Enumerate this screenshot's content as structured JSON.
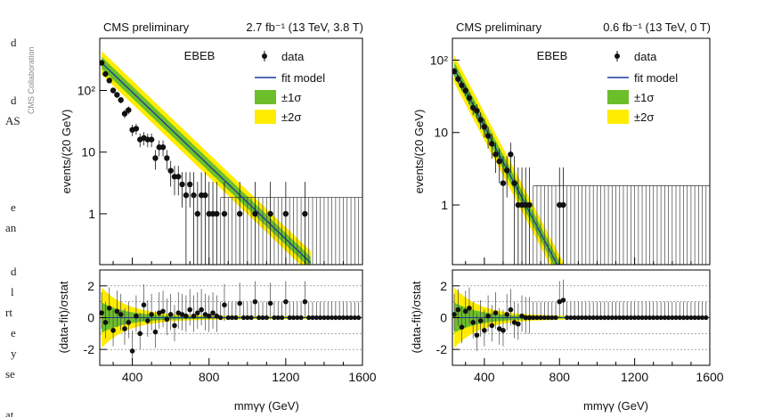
{
  "page": {
    "left_text_fragments": [
      "d",
      "d",
      "AS",
      "e",
      "an",
      "d",
      "l",
      "rt",
      "e",
      "y",
      "se",
      "at"
    ],
    "credit": "CMS Collaboration"
  },
  "colors": {
    "fit": "#1a3a9c",
    "band1": "#6cbf2a",
    "band2": "#ffec00",
    "data": "#111111",
    "frame": "#000000"
  },
  "chart_data": [
    {
      "type": "scatter",
      "panel": "left",
      "header_left": "CMS preliminary",
      "header_right": "2.7 fb⁻¹ (13 TeV, 3.8 T)",
      "category": "EBEB",
      "legend": [
        "data",
        "fit model",
        "±1σ",
        "±2σ"
      ],
      "xlabel": "mmγγ (GeV)",
      "ylabel_top": "events/(20 GeV)",
      "ylabel_bottom": "(data-fit)/σstat",
      "xlim": [
        230,
        1600
      ],
      "ylim_top": [
        0.15,
        700
      ],
      "yscale_top": "log",
      "ylim_bottom": [
        -3,
        3
      ],
      "xticks": [
        400,
        800,
        1200,
        1600
      ],
      "yticks_top": [
        {
          "v": 100,
          "label": "10²"
        },
        {
          "v": 10,
          "label": "10"
        },
        {
          "v": 1,
          "label": "1"
        }
      ],
      "yticks_bottom": [
        2,
        0,
        -2
      ],
      "fit": {
        "A": 280,
        "x0": 240,
        "k": 0.00685,
        "end": 1330
      },
      "data": [
        [
          240,
          280
        ],
        [
          260,
          185
        ],
        [
          280,
          145
        ],
        [
          300,
          100
        ],
        [
          320,
          85
        ],
        [
          340,
          70
        ],
        [
          360,
          42
        ],
        [
          380,
          48
        ],
        [
          400,
          23
        ],
        [
          420,
          24
        ],
        [
          440,
          16
        ],
        [
          460,
          17
        ],
        [
          480,
          16
        ],
        [
          500,
          16
        ],
        [
          520,
          8
        ],
        [
          540,
          12
        ],
        [
          560,
          12
        ],
        [
          580,
          8
        ],
        [
          600,
          5
        ],
        [
          620,
          4
        ],
        [
          640,
          4
        ],
        [
          660,
          3
        ],
        [
          680,
          2
        ],
        [
          700,
          3
        ],
        [
          720,
          2
        ],
        [
          740,
          1
        ],
        [
          760,
          2
        ],
        [
          780,
          2
        ],
        [
          800,
          1
        ],
        [
          820,
          1
        ],
        [
          840,
          1
        ],
        [
          880,
          1
        ],
        [
          960,
          1
        ],
        [
          1040,
          1
        ],
        [
          1120,
          1
        ],
        [
          1200,
          1
        ],
        [
          1300,
          1
        ]
      ],
      "empty_from": 860,
      "residuals": [
        [
          240,
          0.3
        ],
        [
          260,
          -0.3
        ],
        [
          280,
          0.6
        ],
        [
          300,
          -0.8
        ],
        [
          320,
          0.4
        ],
        [
          340,
          0.2
        ],
        [
          360,
          -0.7
        ],
        [
          380,
          -0.3
        ],
        [
          400,
          -2.1
        ],
        [
          420,
          0.1
        ],
        [
          440,
          -1.0
        ],
        [
          460,
          0.8
        ],
        [
          480,
          -0.2
        ],
        [
          500,
          0.2
        ],
        [
          520,
          -0.9
        ],
        [
          540,
          0.3
        ],
        [
          560,
          0.4
        ],
        [
          580,
          -0.1
        ],
        [
          600,
          0.2
        ],
        [
          620,
          -0.5
        ],
        [
          640,
          0.3
        ],
        [
          660,
          0.2
        ],
        [
          680,
          0.1
        ],
        [
          700,
          0.5
        ],
        [
          720,
          0.1
        ],
        [
          740,
          0.3
        ],
        [
          760,
          0.5
        ],
        [
          780,
          0.2
        ],
        [
          800,
          0.1
        ],
        [
          820,
          0.3
        ],
        [
          840,
          0.1
        ],
        [
          880,
          0.8
        ],
        [
          960,
          0.9
        ],
        [
          1040,
          1.0
        ],
        [
          1120,
          0.9
        ],
        [
          1200,
          1.0
        ],
        [
          1300,
          1.0
        ]
      ]
    },
    {
      "type": "scatter",
      "panel": "right",
      "header_left": "CMS preliminary",
      "header_right": "0.6 fb⁻¹ (13 TeV, 0 T)",
      "category": "EBEB",
      "legend": [
        "data",
        "fit model",
        "±1σ",
        "±2σ"
      ],
      "xlabel": "mmγγ (GeV)",
      "ylabel_top": "events/(20 GeV)",
      "ylabel_bottom": "(data-fit)/σstat",
      "xlim": [
        230,
        1600
      ],
      "ylim_top": [
        0.15,
        200
      ],
      "yscale_top": "log",
      "ylim_bottom": [
        -3,
        3
      ],
      "xticks": [
        400,
        800,
        1200,
        1600
      ],
      "yticks_top": [
        {
          "v": 100,
          "label": "10²"
        },
        {
          "v": 10,
          "label": "10"
        },
        {
          "v": 1,
          "label": "1"
        }
      ],
      "yticks_bottom": [
        2,
        0,
        -2
      ],
      "fit": {
        "A": 75,
        "x0": 240,
        "k": 0.01135,
        "end": 830
      },
      "data": [
        [
          240,
          70
        ],
        [
          260,
          55
        ],
        [
          280,
          45
        ],
        [
          300,
          38
        ],
        [
          320,
          30
        ],
        [
          340,
          22
        ],
        [
          360,
          20
        ],
        [
          380,
          15
        ],
        [
          400,
          12
        ],
        [
          420,
          9
        ],
        [
          440,
          7
        ],
        [
          460,
          5
        ],
        [
          480,
          4
        ],
        [
          500,
          2
        ],
        [
          520,
          3
        ],
        [
          540,
          5
        ],
        [
          560,
          2
        ],
        [
          580,
          1
        ],
        [
          600,
          1
        ],
        [
          620,
          1
        ],
        [
          640,
          1
        ],
        [
          800,
          1
        ],
        [
          820,
          1
        ]
      ],
      "empty_from": 660,
      "residuals": [
        [
          240,
          0.2
        ],
        [
          260,
          0.5
        ],
        [
          280,
          -0.6
        ],
        [
          300,
          0.4
        ],
        [
          320,
          0.6
        ],
        [
          340,
          -0.3
        ],
        [
          360,
          -1.1
        ],
        [
          380,
          -0.2
        ],
        [
          400,
          -0.8
        ],
        [
          420,
          0.1
        ],
        [
          440,
          -0.5
        ],
        [
          460,
          0.3
        ],
        [
          480,
          -0.7
        ],
        [
          500,
          -0.8
        ],
        [
          520,
          0.2
        ],
        [
          540,
          0.5
        ],
        [
          560,
          -0.3
        ],
        [
          580,
          -0.4
        ],
        [
          600,
          0.1
        ],
        [
          620,
          0.0
        ],
        [
          640,
          0.0
        ],
        [
          800,
          1.0
        ],
        [
          820,
          1.1
        ]
      ]
    }
  ]
}
